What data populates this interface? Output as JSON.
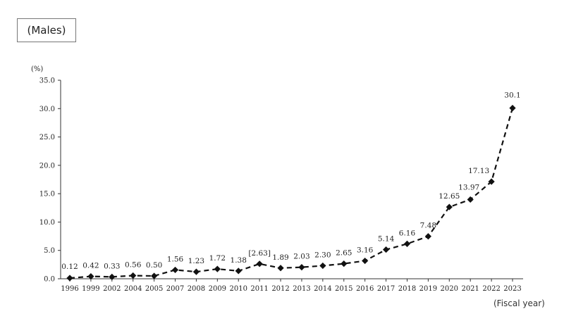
{
  "panel_label": "(Males)",
  "chart_data": {
    "type": "line",
    "title": "",
    "ylabel": "(%)",
    "xlabel": "(Fiscal year)",
    "ylim": [
      0,
      35
    ],
    "yticks": [
      "0.0",
      "5.0",
      "10.0",
      "15.0",
      "20.0",
      "25.0",
      "30.0",
      "35.0"
    ],
    "categories": [
      "1996",
      "1999",
      "2002",
      "2004",
      "2005",
      "2007",
      "2008",
      "2009",
      "2010",
      "2011",
      "2012",
      "2013",
      "2014",
      "2015",
      "2016",
      "2017",
      "2018",
      "2019",
      "2020",
      "2021",
      "2022",
      "2023"
    ],
    "series": [
      {
        "values": [
          0.12,
          0.42,
          0.33,
          0.56,
          0.5,
          1.56,
          1.23,
          1.72,
          1.38,
          2.63,
          1.89,
          2.03,
          2.3,
          2.65,
          3.16,
          5.14,
          6.16,
          7.48,
          12.65,
          13.97,
          17.13,
          30.1
        ],
        "labels": [
          "0.12",
          "0.42",
          "0.33",
          "0.56",
          "0.50",
          "1.56",
          "1.23",
          "1.72",
          "1.38",
          "[2.63]",
          "1.89",
          "2.03",
          "2.30",
          "2.65",
          "3.16",
          "5.14",
          "6.16",
          "7.48",
          "12.65",
          "13.97",
          "17.13",
          "30.1"
        ],
        "line_style": "dashed",
        "marker": "diamond",
        "color": "#111111"
      }
    ],
    "grid": false,
    "legend": "none"
  }
}
